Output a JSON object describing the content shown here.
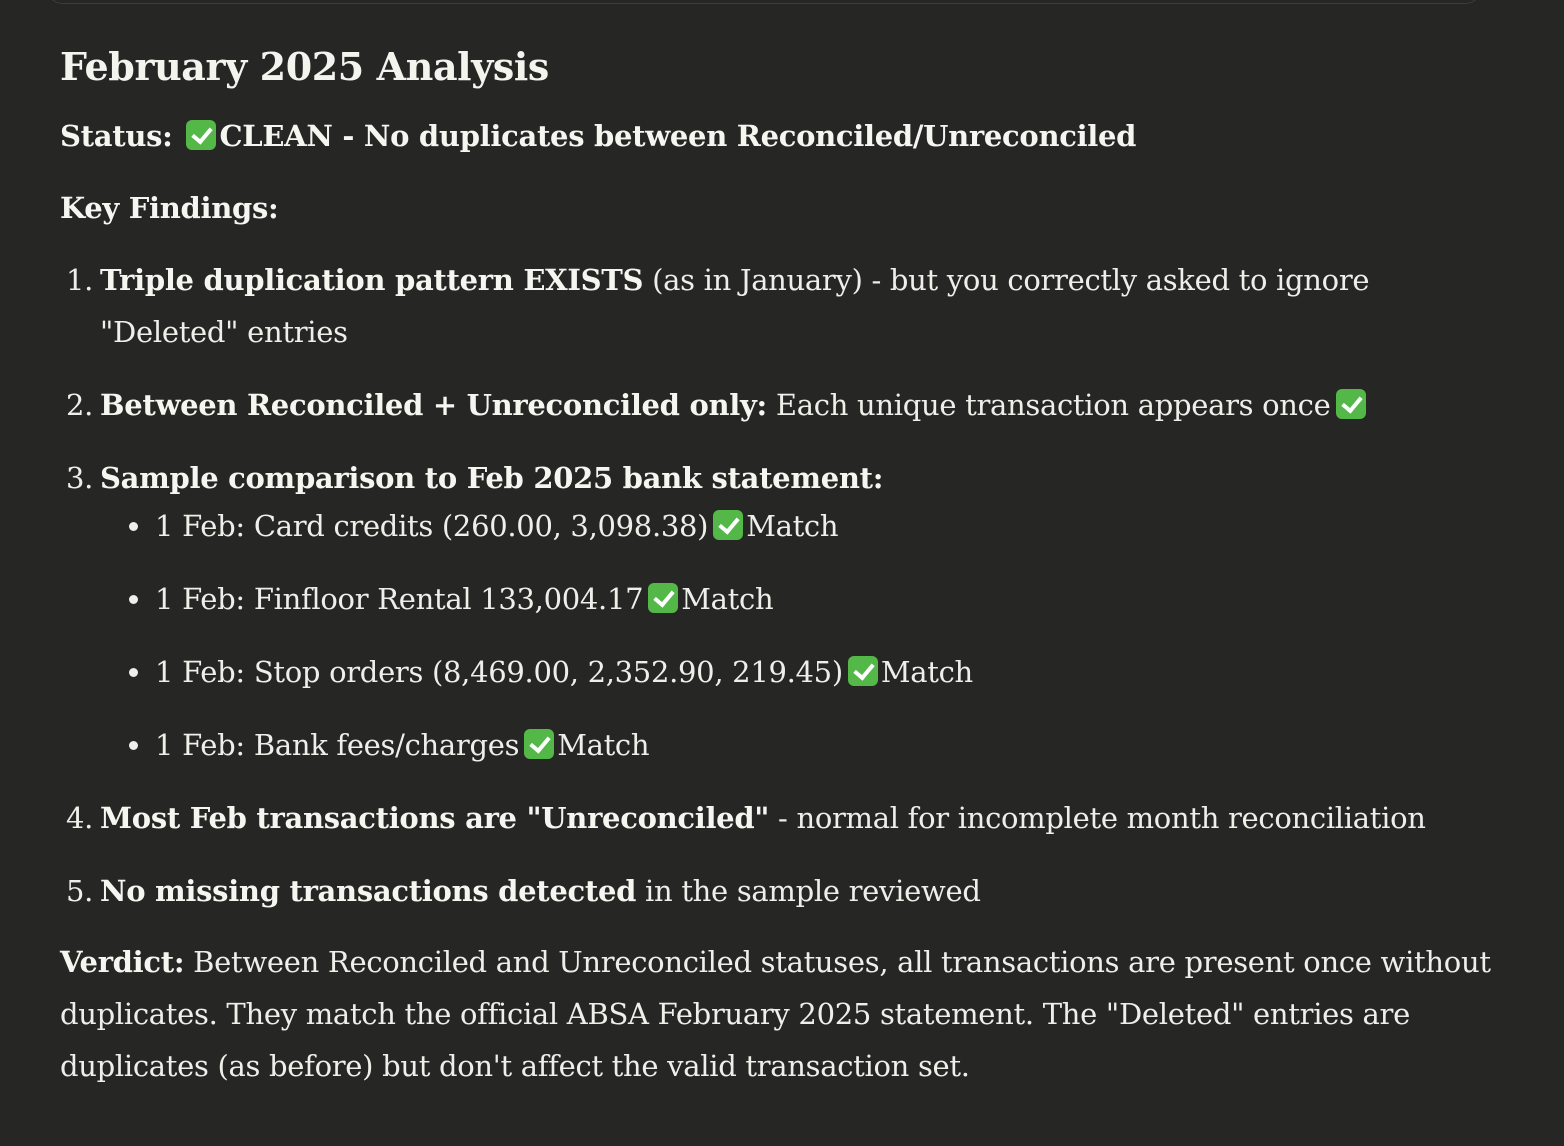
{
  "heading": "February 2025 Analysis",
  "status": {
    "label": "Status:",
    "text": "CLEAN - No duplicates between Reconciled/Unreconciled"
  },
  "key_findings_label": "Key Findings:",
  "findings": [
    {
      "number": "1.",
      "bold": "Triple duplication pattern EXISTS",
      "text": " (as in January) - but you correctly asked to ignore \"Deleted\" entries"
    },
    {
      "number": "2.",
      "bold": "Between Reconciled + Unreconciled only:",
      "text": " Each unique transaction appears once"
    },
    {
      "number": "3.",
      "bold": "Sample comparison to Feb 2025 bank statement:",
      "subitems": [
        {
          "text": "1 Feb: Card credits (260.00, 3,098.38)",
          "result": "Match"
        },
        {
          "text": "1 Feb: Finfloor Rental 133,004.17",
          "result": "Match"
        },
        {
          "text": "1 Feb: Stop orders (8,469.00, 2,352.90, 219.45)",
          "result": "Match"
        },
        {
          "text": "1 Feb: Bank fees/charges",
          "result": "Match"
        }
      ]
    },
    {
      "number": "4.",
      "bold": "Most Feb transactions are \"Unreconciled\"",
      "text": " - normal for incomplete month reconciliation"
    },
    {
      "number": "5.",
      "bold": "No missing transactions detected",
      "text": " in the sample reviewed"
    }
  ],
  "verdict": {
    "label": "Verdict:",
    "text": " Between Reconciled and Unreconciled statuses, all transactions are present once without duplicates. They match the official ABSA February 2025 statement. The \"Deleted\" entries are duplicates (as before) but don't affect the valid transaction set."
  },
  "icons": {
    "check": "check-mark-button-icon"
  },
  "colors": {
    "background": "#262624",
    "text": "#efefea",
    "check_green": "#53b848"
  }
}
